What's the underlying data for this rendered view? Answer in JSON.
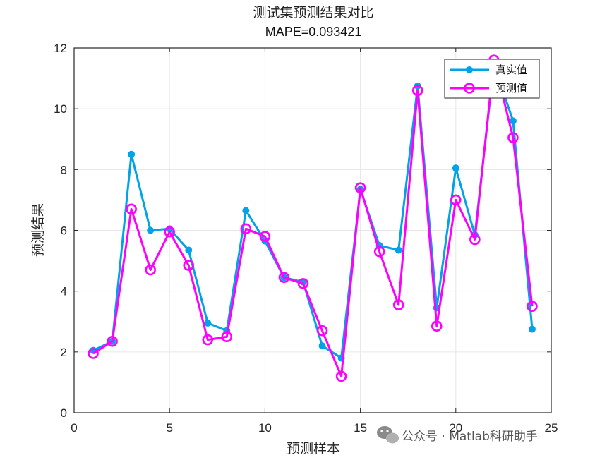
{
  "chart_data": {
    "type": "line",
    "title": "测试集预测结果对比",
    "subtitle": "MAPE=0.093421",
    "xlabel": "预测样本",
    "ylabel": "预测结果",
    "xlim": [
      0,
      25
    ],
    "ylim": [
      0,
      12
    ],
    "xticks": [
      0,
      5,
      10,
      15,
      20,
      25
    ],
    "yticks": [
      0,
      2,
      4,
      6,
      8,
      10,
      12
    ],
    "grid": true,
    "legend_position": "top-right",
    "x": [
      1,
      2,
      3,
      4,
      5,
      6,
      7,
      8,
      9,
      10,
      11,
      12,
      13,
      14,
      15,
      16,
      17,
      18,
      19,
      20,
      21,
      22,
      23,
      24
    ],
    "series": [
      {
        "name": "真实值",
        "color": "#00a2e8",
        "marker": "filled-circle",
        "values": [
          2.05,
          2.35,
          8.5,
          6.0,
          6.05,
          5.35,
          2.95,
          2.7,
          6.65,
          5.65,
          4.45,
          4.3,
          2.2,
          1.8,
          7.35,
          5.5,
          5.35,
          10.75,
          3.45,
          8.05,
          5.85,
          11.45,
          9.6,
          2.75
        ]
      },
      {
        "name": "预测值",
        "color": "#ff00ff",
        "marker": "open-circle",
        "values": [
          1.95,
          2.35,
          6.7,
          4.7,
          5.95,
          4.85,
          2.4,
          2.5,
          6.05,
          5.8,
          4.45,
          4.25,
          2.7,
          1.2,
          7.4,
          5.3,
          3.55,
          10.6,
          2.85,
          7.0,
          5.7,
          11.6,
          9.05,
          3.5
        ]
      }
    ]
  },
  "watermark": {
    "icon": "wechat-icon",
    "text": "公众号 · Matlab科研助手"
  }
}
